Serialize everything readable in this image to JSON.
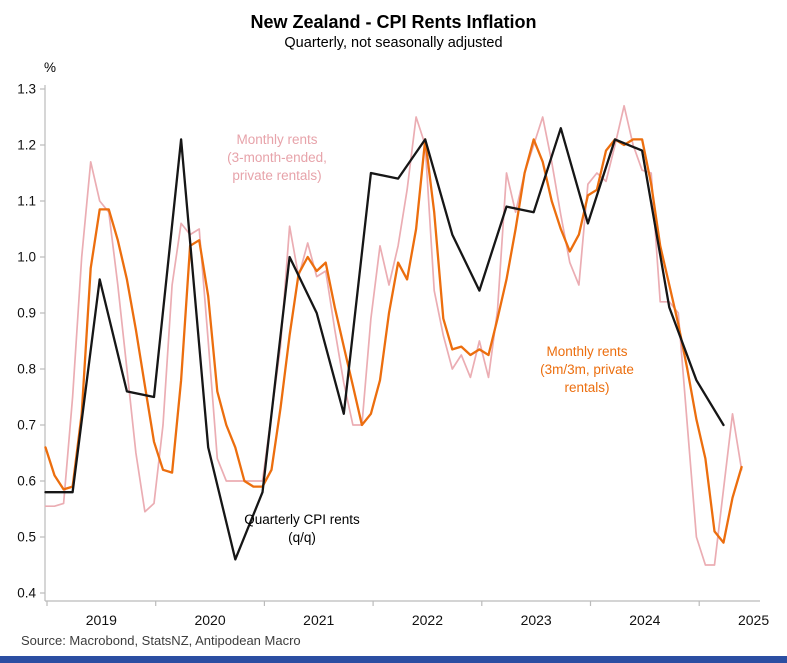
{
  "header": {
    "title": "New Zealand - CPI Rents Inflation",
    "subtitle": "Quarterly, not seasonally adjusted"
  },
  "source_note": "Source: Macrobond, StatsNZ, Antipodean Macro",
  "footer_bar_color": "#2b4ea2",
  "chart_data": {
    "type": "line",
    "title": "New Zealand - CPI Rents Inflation",
    "subtitle": "Quarterly, not seasonally adjusted",
    "unit_label": "%",
    "grid": false,
    "legend_position": "inline-annotations",
    "ylim": [
      0.4,
      1.3
    ],
    "y_ticks": [
      "1.3",
      "1.2",
      "1.1",
      "1.0",
      "0.9",
      "0.8",
      "0.7",
      "0.6",
      "0.5",
      "0.4"
    ],
    "x_tick_labels": [
      "2019",
      "2020",
      "2021",
      "2022",
      "2023",
      "2024",
      "2025"
    ],
    "x_start_month": "2018-12",
    "x_end_month": "2025-05",
    "axis_color": "#bbbbbb",
    "series": [
      {
        "name": "Monthly rents (3-month-ended, private rentals)",
        "frequency": "monthly",
        "start": "2018-12",
        "color": "#ebadb3",
        "width": 1.7,
        "values": [
          0.555,
          0.555,
          0.56,
          0.75,
          1.0,
          1.17,
          1.1,
          1.08,
          0.95,
          0.8,
          0.65,
          0.545,
          0.56,
          0.7,
          0.95,
          1.06,
          1.04,
          1.05,
          0.85,
          0.64,
          0.6,
          0.6,
          0.6,
          0.6,
          0.6,
          0.72,
          0.84,
          1.055,
          0.965,
          1.025,
          0.965,
          0.975,
          0.87,
          0.775,
          0.7,
          0.7,
          0.89,
          1.02,
          0.95,
          1.02,
          1.12,
          1.25,
          1.2,
          0.94,
          0.86,
          0.8,
          0.825,
          0.785,
          0.85,
          0.785,
          0.905,
          1.15,
          1.08,
          1.15,
          1.2,
          1.25,
          1.17,
          1.075,
          0.99,
          0.95,
          1.13,
          1.15,
          1.135,
          1.2,
          1.27,
          1.2,
          1.155,
          1.15,
          0.92,
          0.92,
          0.9,
          0.7,
          0.5,
          0.45,
          0.45,
          0.585,
          0.72,
          0.62
        ]
      },
      {
        "name": "Monthly rents (3m/3m, private rentals)",
        "frequency": "monthly",
        "start": "2018-12",
        "color": "#ec6e0e",
        "width": 2.3,
        "values": [
          0.66,
          0.61,
          0.585,
          0.59,
          0.72,
          0.98,
          1.085,
          1.085,
          1.03,
          0.96,
          0.87,
          0.77,
          0.67,
          0.62,
          0.615,
          0.78,
          1.02,
          1.03,
          0.93,
          0.76,
          0.7,
          0.66,
          0.6,
          0.59,
          0.59,
          0.62,
          0.73,
          0.86,
          0.97,
          1.0,
          0.975,
          0.99,
          0.91,
          0.84,
          0.77,
          0.7,
          0.72,
          0.78,
          0.9,
          0.99,
          0.96,
          1.05,
          1.21,
          1.08,
          0.89,
          0.835,
          0.84,
          0.825,
          0.835,
          0.825,
          0.89,
          0.96,
          1.05,
          1.15,
          1.21,
          1.17,
          1.1,
          1.05,
          1.01,
          1.04,
          1.11,
          1.12,
          1.19,
          1.21,
          1.2,
          1.21,
          1.21,
          1.13,
          1.02,
          0.95,
          0.88,
          0.8,
          0.71,
          0.64,
          0.51,
          0.49,
          0.57,
          0.625
        ]
      },
      {
        "name": "Quarterly CPI rents (q/q)",
        "frequency": "quarterly",
        "start": "2018-Q4",
        "color": "#161616",
        "width": 2.3,
        "values": [
          0.58,
          0.58,
          0.96,
          0.76,
          0.75,
          1.21,
          0.66,
          0.46,
          0.58,
          1.0,
          0.9,
          0.72,
          1.15,
          1.14,
          1.21,
          1.04,
          0.94,
          1.09,
          1.08,
          1.23,
          1.06,
          1.21,
          1.19,
          0.91,
          0.78,
          0.7
        ]
      }
    ],
    "annotations": [
      {
        "id": "pink-series-label",
        "color": "#e7a3aa",
        "lines": [
          "Monthly rents",
          "(3-month-ended,",
          "private rentals)"
        ]
      },
      {
        "id": "orange-series-label",
        "color": "#ec6e0e",
        "lines": [
          "Monthly rents",
          "(3m/3m, private",
          "rentals)"
        ]
      },
      {
        "id": "black-series-label",
        "color": "#000000",
        "lines": [
          "Quarterly CPI rents",
          "(q/q)"
        ]
      }
    ]
  }
}
